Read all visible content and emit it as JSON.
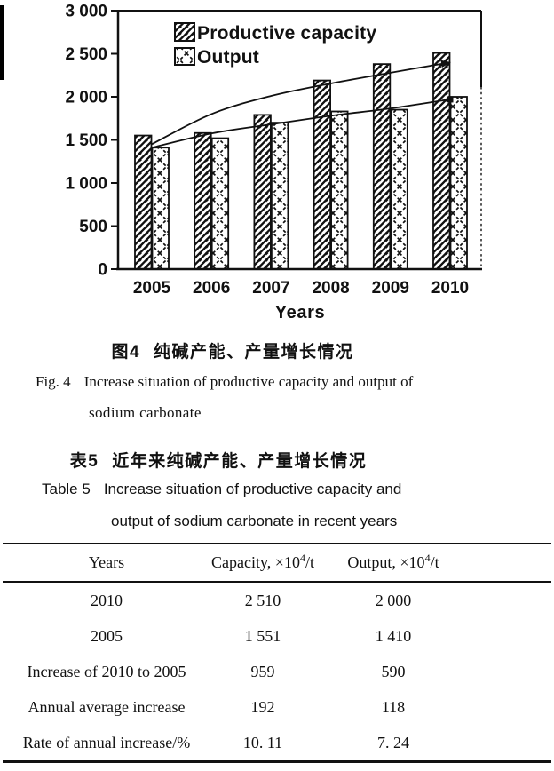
{
  "chart_data": {
    "type": "bar",
    "title": "",
    "xlabel": "Years",
    "ylabel": "",
    "ylim": [
      0,
      3000
    ],
    "grid": false,
    "legend_position": "top-left-inside",
    "categories": [
      "2005",
      "2006",
      "2007",
      "2008",
      "2009",
      "2010"
    ],
    "series": [
      {
        "name": "Productive capacity",
        "pattern": "diagonal-hatch",
        "values": [
          1551,
          1580,
          1790,
          2190,
          2380,
          2510
        ]
      },
      {
        "name": "Output",
        "pattern": "dashed-diamond-lattice",
        "values": [
          1410,
          1520,
          1700,
          1830,
          1850,
          2000
        ]
      }
    ],
    "trend_lines": [
      {
        "name": "Productive capacity trend",
        "end_marker": "arrow",
        "values": [
          1450,
          1800,
          2010,
          2155,
          2280,
          2400
        ]
      },
      {
        "name": "Output trend",
        "end_marker": "square-dot",
        "values": [
          1410,
          1575,
          1680,
          1780,
          1865,
          1970
        ]
      }
    ],
    "y_ticks": [
      {
        "v": 0,
        "label": "0"
      },
      {
        "v": 500,
        "label": "500"
      },
      {
        "v": 1000,
        "label": "1 000"
      },
      {
        "v": 1500,
        "label": "1 500"
      },
      {
        "v": 2000,
        "label": "2 000"
      },
      {
        "v": 2500,
        "label": "2 500"
      },
      {
        "v": 3000,
        "label": "3 000"
      }
    ]
  },
  "figure_caption": {
    "label_zh": "图4",
    "text_zh": "纯碱产能、产量增长情况",
    "label_en": "Fig. 4",
    "text_en_line1": "Increase situation of productive capacity and output of",
    "text_en_line2": "sodium carbonate"
  },
  "table_caption": {
    "label_zh": "表5",
    "text_zh": "近年来纯碱产能、产量增长情况",
    "label_en": "Table 5",
    "text_en_line1": "Increase situation of productive capacity and",
    "text_en_line2": "output of sodium carbonate in recent years"
  },
  "table": {
    "headers": [
      {
        "text": "Years"
      },
      {
        "pre": "Capacity, ×10",
        "sup": "4",
        "post": "/t"
      },
      {
        "pre": "Output, ×10",
        "sup": "4",
        "post": "/t"
      }
    ],
    "rows": [
      [
        "2010",
        "2 510",
        "2 000"
      ],
      [
        "2005",
        "1 551",
        "1 410"
      ],
      [
        "Increase of 2010 to 2005",
        "959",
        "590"
      ],
      [
        "Annual average increase",
        "192",
        "118"
      ],
      [
        "Rate of annual increase/%",
        "10. 11",
        "7. 24"
      ]
    ]
  }
}
